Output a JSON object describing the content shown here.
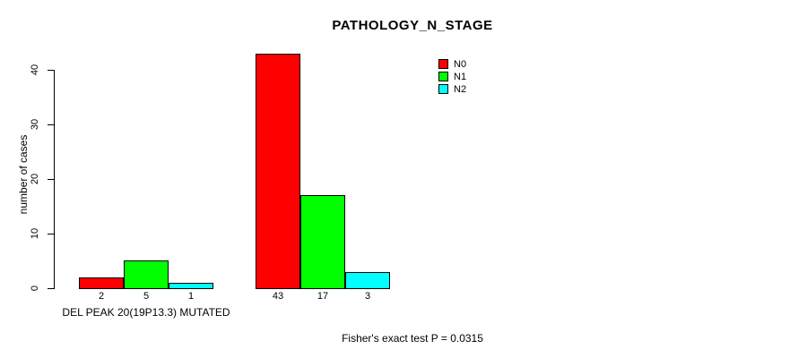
{
  "chart_data": {
    "type": "bar",
    "title": "PATHOLOGY_N_STAGE",
    "ylabel": "number of cases",
    "xlabel": "",
    "ylim": [
      0,
      40
    ],
    "yticks": [
      0,
      10,
      20,
      30,
      40
    ],
    "grid": false,
    "categories": [
      "DEL PEAK 20(19P13.3) MUTATED",
      ""
    ],
    "series": [
      {
        "name": "N0",
        "color": "#ff0000",
        "values": [
          2,
          43
        ]
      },
      {
        "name": "N1",
        "color": "#00ff00",
        "values": [
          5,
          17
        ]
      },
      {
        "name": "N2",
        "color": "#00ffff",
        "values": [
          1,
          3
        ]
      }
    ],
    "bar_value_labels": [
      [
        2,
        5,
        1
      ],
      [
        43,
        17,
        3
      ]
    ],
    "legend": {
      "position": "top-right"
    },
    "annotation": "Fisher's exact test P = 0.0315"
  }
}
